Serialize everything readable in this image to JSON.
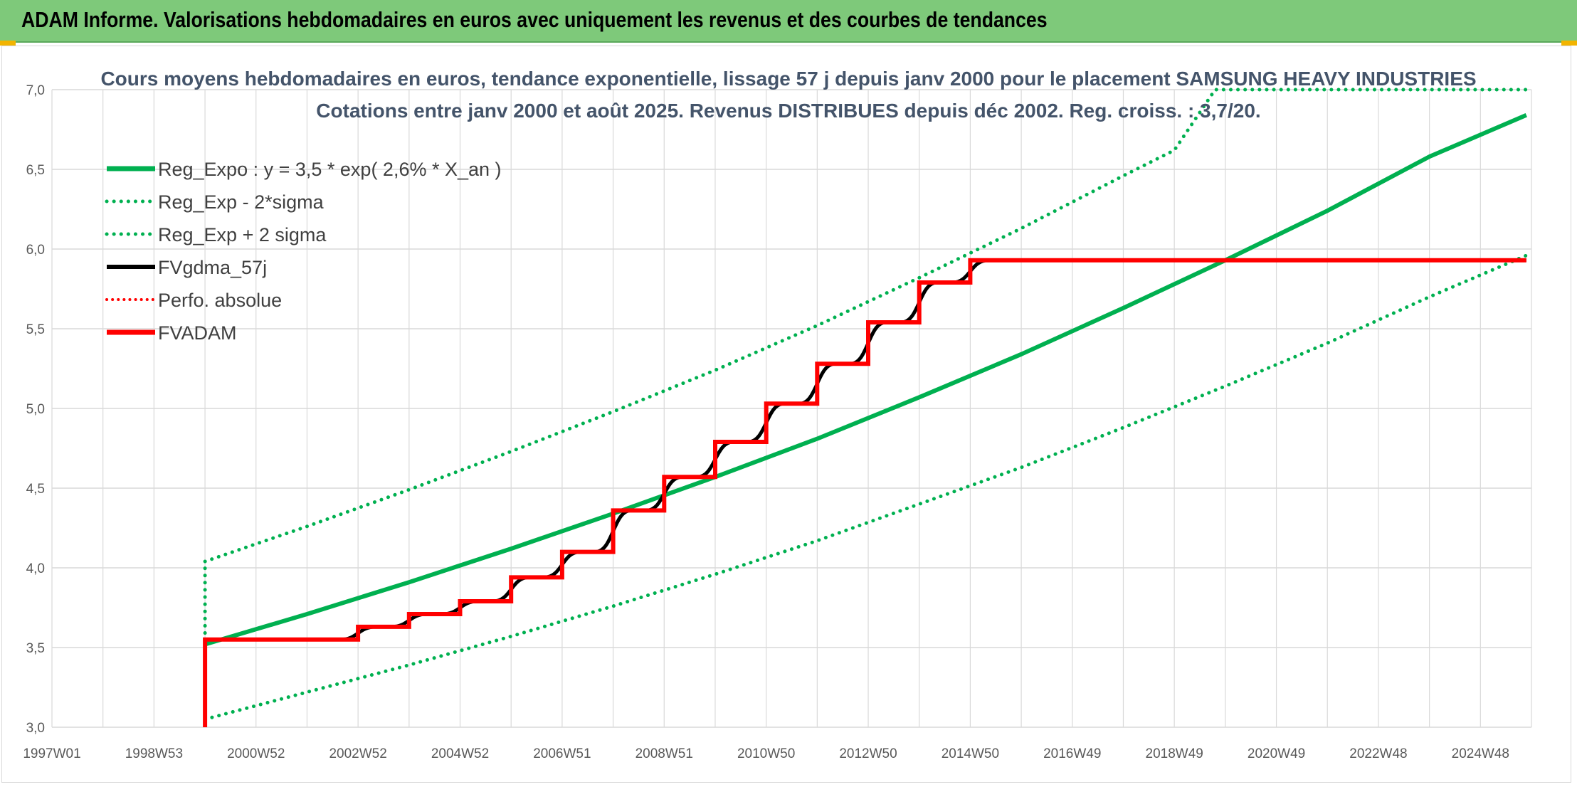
{
  "banner": {
    "title": "ADAM Informe. Valorisations hebdomadaires en euros avec uniquement les revenus et des courbes de tendances"
  },
  "colors": {
    "banner_bg": "#7ec97a",
    "reg_expo": "#00b050",
    "fv_gdma": "#000000",
    "fv_adam": "#ff0000",
    "corner": "#f2b400"
  },
  "chart_data": {
    "type": "line",
    "title_lines": [
      "Cours moyens hebdomadaires en euros, tendance exponentielle, lissage 57 j depuis janv 2000 pour le placement SAMSUNG HEAVY INDUSTRIES",
      "Cotations entre janv 2000 et août 2025. Revenus DISTRIBUES depuis déc 2002. Reg. croiss. : 3,7/20."
    ],
    "x_tick_labels": [
      "1997W01",
      "1998W53",
      "2000W52",
      "2002W52",
      "2004W52",
      "2006W51",
      "2008W51",
      "2010W50",
      "2012W50",
      "2014W50",
      "2016W49",
      "2018W49",
      "2020W49",
      "2022W48",
      "2024W48"
    ],
    "x_range_years": [
      1997.0,
      2026.0
    ],
    "x_tick_years": [
      1997.0,
      1999.0,
      2001.0,
      2003.0,
      2005.0,
      2007.0,
      2009.0,
      2011.0,
      2013.0,
      2015.0,
      2017.0,
      2019.0,
      2021.0,
      2023.0,
      2025.0
    ],
    "y_tick_labels": [
      "3,0",
      "3,5",
      "4,0",
      "4,5",
      "5,0",
      "5,5",
      "6,0",
      "6,5",
      "7,0"
    ],
    "ylim": [
      3.0,
      7.0
    ],
    "grid": true,
    "legend_position": "top-left",
    "legend": [
      {
        "label": "Reg_Expo : y = 3,5 * exp( 2,6% *  X_an )",
        "style": "solid-green"
      },
      {
        "label": "Reg_Exp - 2*sigma",
        "style": "dotted-green"
      },
      {
        "label": "Reg_Exp + 2 sigma",
        "style": "dotted-green"
      },
      {
        "label": "FVgdma_57j",
        "style": "solid-black"
      },
      {
        "label": "Perfo. absolue",
        "style": "dotted-red"
      },
      {
        "label": "FVADAM",
        "style": "solid-red"
      }
    ],
    "reg_expo": {
      "x": [
        2000.0,
        2002.0,
        2004.0,
        2006.0,
        2008.0,
        2010.0,
        2012.0,
        2014.0,
        2016.0,
        2018.0,
        2020.0,
        2022.0,
        2024.0,
        2025.9
      ],
      "y": [
        3.52,
        3.71,
        3.91,
        4.12,
        4.34,
        4.57,
        4.81,
        5.07,
        5.34,
        5.63,
        5.93,
        6.24,
        6.58,
        6.84
      ]
    },
    "reg_minus_2sigma": {
      "x": [
        2000.0,
        2002.0,
        2004.0,
        2006.0,
        2008.0,
        2010.0,
        2012.0,
        2014.0,
        2016.0,
        2018.0,
        2020.0,
        2022.0,
        2024.0,
        2025.9
      ],
      "y": [
        3.05,
        3.22,
        3.39,
        3.57,
        3.76,
        3.96,
        4.17,
        4.4,
        4.63,
        4.88,
        5.14,
        5.41,
        5.7,
        5.96
      ]
    },
    "reg_plus_2sigma": {
      "x": [
        2000.0,
        2002.0,
        2004.0,
        2006.0,
        2008.0,
        2010.0,
        2012.0,
        2014.0,
        2016.0,
        2018.0,
        2019.0,
        2019.8,
        2025.9
      ],
      "y": [
        4.04,
        4.26,
        4.49,
        4.73,
        4.98,
        5.24,
        5.52,
        5.82,
        6.13,
        6.46,
        6.62,
        7.0,
        7.0
      ]
    },
    "reg_plus_2sigma_vertical_segment": {
      "x": 2000.0,
      "y": [
        3.05,
        4.04
      ]
    },
    "fv_adam": {
      "x": [
        2000.0,
        2000.0,
        2003.0,
        2003.0,
        2004.0,
        2004.0,
        2005.0,
        2005.0,
        2006.0,
        2006.0,
        2007.0,
        2007.0,
        2008.0,
        2008.0,
        2009.0,
        2009.0,
        2010.0,
        2010.0,
        2011.0,
        2011.0,
        2012.0,
        2012.0,
        2013.0,
        2013.0,
        2014.0,
        2014.0,
        2015.0,
        2015.0,
        2025.9
      ],
      "y": [
        3.0,
        3.55,
        3.55,
        3.63,
        3.63,
        3.71,
        3.71,
        3.79,
        3.79,
        3.94,
        3.94,
        4.1,
        4.1,
        4.36,
        4.36,
        4.57,
        4.57,
        4.79,
        4.79,
        5.03,
        5.03,
        5.28,
        5.28,
        5.54,
        5.54,
        5.79,
        5.79,
        5.93,
        5.93
      ]
    },
    "fv_gdma_57j": {
      "steps_x": [
        2003.0,
        2004.0,
        2005.0,
        2006.0,
        2007.0,
        2008.0,
        2009.0,
        2010.0,
        2011.0,
        2012.0,
        2013.0,
        2014.0,
        2015.0
      ],
      "levels": [
        3.55,
        3.63,
        3.71,
        3.79,
        3.94,
        4.1,
        4.36,
        4.57,
        4.79,
        5.03,
        5.28,
        5.54,
        5.79,
        5.93
      ],
      "x_start": 2000.0,
      "x_end": 2025.9
    }
  }
}
